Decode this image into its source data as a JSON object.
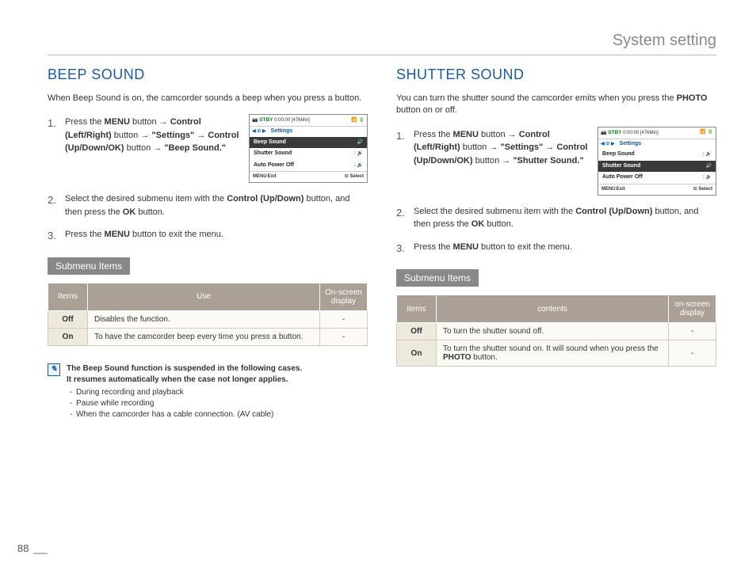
{
  "header": "System setting",
  "pageNumber": "88",
  "left": {
    "title": "BEEP SOUND",
    "intro_parts": [
      "When Beep Sound is on, the camcorder sounds a beep when you press a button."
    ],
    "steps": [
      {
        "html": "Press the <b>MENU</b> button → <b>Control (Left/Right)</b> button → <b>\"Settings\"</b> → <b>Control (Up/Down/OK)</b> button → <b>\"Beep Sound.\"</b>"
      },
      {
        "html": "Select the desired submenu item with the <b>Control (Up/Down)</b> button, and then press the <b>OK</b> button."
      },
      {
        "html": "Press the <b>MENU</b> button to exit the menu."
      }
    ],
    "lcd": {
      "stby": "STBY",
      "time": "0:00:00",
      "remain": "[476Min]",
      "settings_label": "Settings",
      "items": [
        {
          "label": "Beep Sound",
          "selected": true
        },
        {
          "label": "Shutter Sound",
          "selected": false
        },
        {
          "label": "Auto Power Off",
          "selected": false
        }
      ],
      "menu_exit": "Exit",
      "select": "Select"
    },
    "submenu_label": "Submenu Items",
    "table": {
      "headers": [
        "Items",
        "Use",
        "On-screen display"
      ],
      "rows": [
        {
          "item": "Off",
          "use": "Disables the function.",
          "disp": "-"
        },
        {
          "item": "On",
          "use": "To have the camcorder beep every time you press a button.",
          "disp": "-"
        }
      ]
    },
    "note": {
      "head1": "The Beep Sound function is suspended in the following cases.",
      "head2": "It resumes automatically when the case not longer applies.",
      "bullets": [
        "During recording and playback",
        "Pause while recording",
        "When the camcorder has a cable connection. (AV cable)"
      ]
    }
  },
  "right": {
    "title": "SHUTTER SOUND",
    "intro_html": "You can turn the shutter sound the camcorder emits when you press the <b>PHOTO</b> button on or off.",
    "steps": [
      {
        "html": "Press the <b>MENU</b> button → <b>Control (Left/Right)</b> button → <b>\"Settings\"</b> → <b>Control (Up/Down/OK)</b> button → <b>\"Shutter Sound.\"</b>"
      },
      {
        "html": "Select the desired submenu item with the <b>Control (Up/Down)</b> button, and then press the <b>OK</b> button."
      },
      {
        "html": "Press the <b>MENU</b> button to exit the menu."
      }
    ],
    "lcd": {
      "stby": "STBY",
      "time": "0:00:00",
      "remain": "[476Min]",
      "settings_label": "Settings",
      "items": [
        {
          "label": "Beep Sound",
          "selected": false
        },
        {
          "label": "Shutter Sound",
          "selected": true
        },
        {
          "label": "Auto Power Off",
          "selected": false
        }
      ],
      "menu_exit": "Exit",
      "select": "Select"
    },
    "submenu_label": "Submenu Items",
    "table": {
      "headers": [
        "items",
        "contents",
        "on-screen display"
      ],
      "rows": [
        {
          "item": "Off",
          "use": "To turn the shutter sound off.",
          "disp": "-"
        },
        {
          "item": "On",
          "use_html": "To turn the shutter sound on. It will sound when you press the <b>PHOTO</b> button.",
          "disp": "-"
        }
      ]
    }
  }
}
